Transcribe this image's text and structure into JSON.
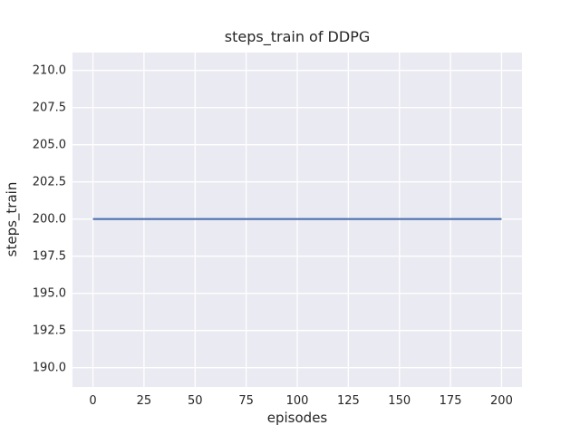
{
  "chart_data": {
    "type": "line",
    "title": "steps_train of DDPG",
    "xlabel": "episodes",
    "ylabel": "steps_train",
    "xlim": [
      -10,
      210
    ],
    "ylim": [
      188.7,
      211.2
    ],
    "xticks": [
      "0",
      "25",
      "50",
      "75",
      "100",
      "125",
      "150",
      "175",
      "200"
    ],
    "yticks": [
      "190.0",
      "192.5",
      "195.0",
      "197.5",
      "200.0",
      "202.5",
      "205.0",
      "207.5",
      "210.0"
    ],
    "grid": true,
    "legend": "none",
    "series": [
      {
        "name": "steps_train",
        "x": [
          0,
          200
        ],
        "y": [
          200,
          200
        ],
        "color": "#4c72b0"
      }
    ],
    "style": {
      "figure_background": "#ffffff",
      "axes_background": "#eaeaf2",
      "grid_color": "#ffffff",
      "text_color": "#262626",
      "grid_linewidth": 1.3,
      "line_linewidth": 2.2
    }
  }
}
